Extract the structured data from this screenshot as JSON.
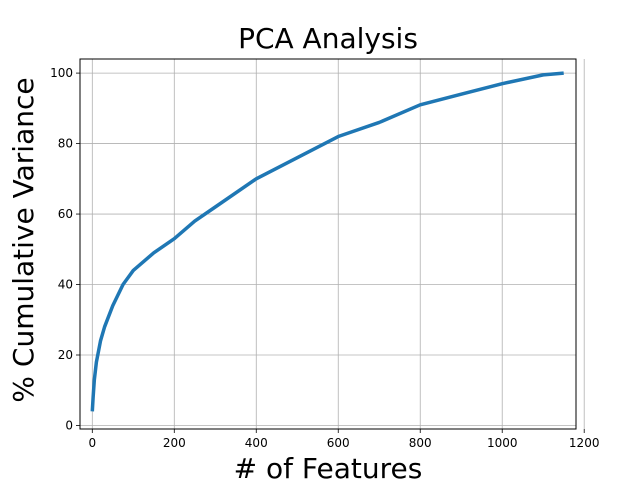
{
  "chart_data": {
    "type": "line",
    "title": "PCA Analysis",
    "xlabel": "# of Features",
    "ylabel": "% Cumulative Variance",
    "xlim": [
      -30,
      1180
    ],
    "ylim": [
      -1,
      104
    ],
    "xticks": [
      0,
      200,
      400,
      600,
      800,
      1000,
      1200
    ],
    "yticks": [
      0,
      20,
      40,
      60,
      80,
      100
    ],
    "grid": true,
    "legend": "none",
    "series": [
      {
        "color": "#1f77b4",
        "x": [
          0,
          2,
          5,
          10,
          20,
          30,
          50,
          75,
          100,
          150,
          200,
          250,
          300,
          400,
          500,
          600,
          700,
          800,
          900,
          1000,
          1100,
          1150
        ],
        "y": [
          4,
          8,
          13,
          18,
          24,
          28,
          34,
          40,
          44,
          49,
          53,
          58,
          62,
          70,
          76,
          82,
          86,
          91,
          94,
          97,
          99.5,
          100
        ]
      }
    ]
  }
}
